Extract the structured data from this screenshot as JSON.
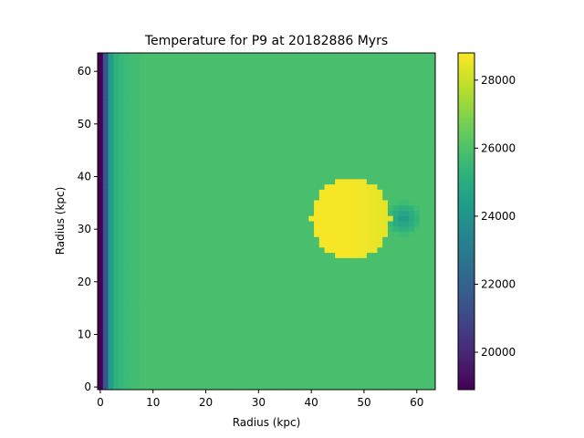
{
  "chart_data": {
    "type": "heatmap",
    "title": "Temperature for P9 at 20182886 Myrs",
    "xlabel": "Radius (kpc)",
    "ylabel": "Radius (kpc)",
    "xlim": [
      -0.5,
      63.5
    ],
    "ylim": [
      63.5,
      -0.5
    ],
    "xticks": [
      0,
      10,
      20,
      30,
      40,
      50,
      60
    ],
    "yticks": [
      0,
      10,
      20,
      30,
      40,
      50,
      60
    ],
    "grid_size": [
      64,
      64
    ],
    "colormap": "viridis",
    "colorbar": {
      "min": 18900,
      "max": 28800,
      "ticks": [
        20000,
        22000,
        24000,
        26000,
        28000
      ]
    },
    "field": {
      "background_value": 25900,
      "edge_columns": [
        {
          "col": 0,
          "value": 18900
        },
        {
          "col": 1,
          "value": 21500
        },
        {
          "col": 2,
          "value": 24400
        },
        {
          "col": 3,
          "value": 25200
        },
        {
          "col": 4,
          "value": 25500
        },
        {
          "col": 5,
          "value": 25650
        },
        {
          "col": 6,
          "value": 25750
        },
        {
          "col": 7,
          "value": 25800
        },
        {
          "col": 8,
          "value": 25850
        }
      ],
      "hot_blob": {
        "center_x": 47.5,
        "center_y": 31,
        "radius": 7.5,
        "value": 28700
      },
      "cool_wake": {
        "center_x": 57.5,
        "center_y": 31,
        "radius": 3.5,
        "value": 24200
      }
    }
  }
}
